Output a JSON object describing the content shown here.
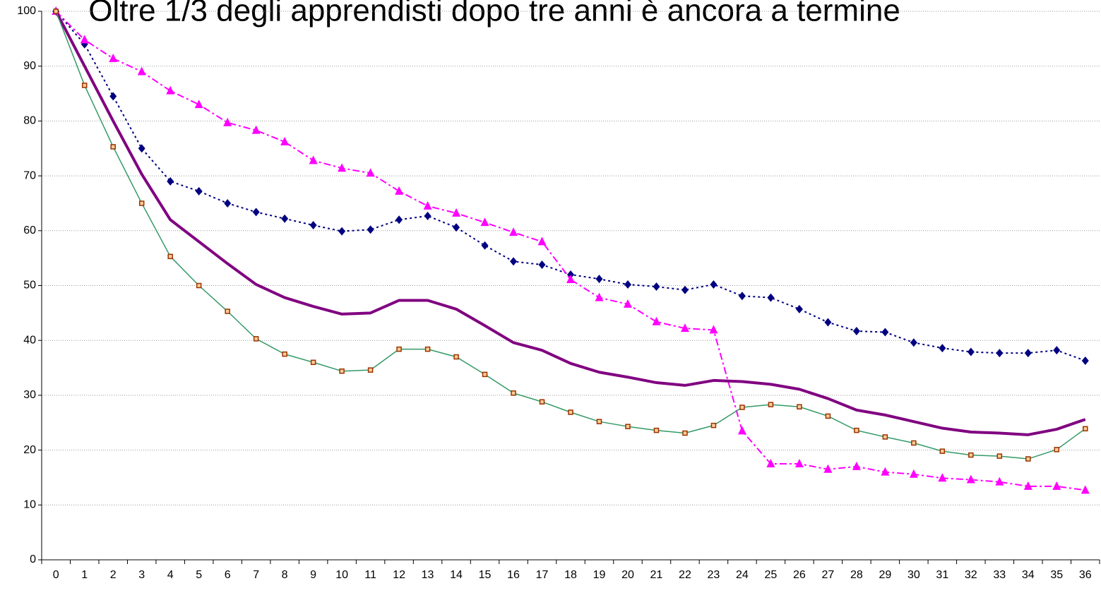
{
  "chart_data": {
    "type": "line",
    "title": "Oltre 1/3 degli apprendisti dopo tre anni è ancora a termine",
    "categories": [
      0,
      1,
      2,
      3,
      4,
      5,
      6,
      7,
      8,
      9,
      10,
      11,
      12,
      13,
      14,
      15,
      16,
      17,
      18,
      19,
      20,
      21,
      22,
      23,
      24,
      25,
      26,
      27,
      28,
      29,
      30,
      31,
      32,
      33,
      34,
      35,
      36
    ],
    "series": [
      {
        "color": "#000080",
        "marker": "diamond",
        "dash": "3,4",
        "width": 2,
        "values": [
          100,
          94,
          84.5,
          75,
          69,
          67.2,
          65,
          63.4,
          62.2,
          61,
          59.9,
          60.2,
          62,
          62.7,
          60.6,
          57.3,
          54.4,
          53.8,
          52,
          51.2,
          50.2,
          49.8,
          49.2,
          50.2,
          48.1,
          47.8,
          45.7,
          43.3,
          41.7,
          41.5,
          39.6,
          38.6,
          37.9,
          37.7,
          37.7,
          38.2,
          36.3
        ]
      },
      {
        "color": "#ff00ff",
        "marker": "triangle",
        "dash": "10,4,3,4",
        "width": 2,
        "values": [
          100,
          94.8,
          91.4,
          89,
          85.5,
          83,
          79.7,
          78.3,
          76.2,
          72.8,
          71.4,
          70.5,
          67.2,
          64.5,
          63.2,
          61.5,
          59.7,
          58,
          51.1,
          47.8,
          46.6,
          43.4,
          42.2,
          41.9,
          23.5,
          17.5,
          17.5,
          16.5,
          17,
          16,
          15.6,
          14.9,
          14.6,
          14.2,
          13.4,
          13.4,
          12.7
        ]
      },
      {
        "color": "#800080",
        "marker": "none",
        "dash": "none",
        "width": 4,
        "values": [
          100,
          90,
          80,
          70.3,
          62,
          58,
          54,
          50.2,
          47.8,
          46.2,
          44.8,
          45,
          47.3,
          47.3,
          45.7,
          42.7,
          39.6,
          38.2,
          35.8,
          34.2,
          33.3,
          32.3,
          31.8,
          32.7,
          32.5,
          32,
          31.1,
          29.4,
          27.3,
          26.4,
          25.2,
          24,
          23.3,
          23.1,
          22.8,
          23.8,
          25.6
        ]
      },
      {
        "color": "#339966",
        "marker": "square",
        "marker_color": "#993300",
        "dash": "none",
        "width": 1.5,
        "values": [
          100,
          86.5,
          75.3,
          65,
          55.3,
          50,
          45.3,
          40.3,
          37.5,
          36,
          34.4,
          34.6,
          38.4,
          38.4,
          37,
          33.8,
          30.4,
          28.8,
          26.9,
          25.2,
          24.3,
          23.6,
          23.1,
          24.5,
          27.8,
          28.3,
          27.9,
          26.2,
          23.6,
          22.4,
          21.3,
          19.8,
          19.1,
          18.9,
          18.4,
          20.1,
          23.9
        ]
      }
    ],
    "ylim": [
      0,
      100
    ],
    "yticks": [
      0,
      10,
      20,
      30,
      40,
      50,
      60,
      70,
      80,
      90,
      100
    ],
    "grid": true
  }
}
